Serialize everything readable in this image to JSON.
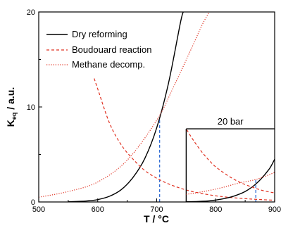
{
  "chart_data": {
    "type": "line",
    "title": "",
    "xlabel": "T / °C",
    "ylabel_main": "K",
    "ylabel_sub": "eq",
    "ylabel_rest": " / a.u.",
    "xlim": [
      500,
      900
    ],
    "ylim": [
      0,
      20
    ],
    "x_ticks": [
      500,
      600,
      700,
      800,
      900
    ],
    "y_ticks": [
      0,
      10,
      20
    ],
    "grid": false,
    "legend_position": "top-right",
    "colors": {
      "dry": "#000000",
      "boudouard": "#e03020",
      "methane": "#e03020",
      "marker": "#2060d0"
    },
    "series": [
      {
        "name": "Dry reforming",
        "style": "solid",
        "x": [
          550,
          580,
          600,
          620,
          640,
          660,
          680,
          700,
          720,
          740,
          745
        ],
        "values": [
          0.02,
          0.1,
          0.25,
          0.6,
          1.3,
          2.6,
          4.6,
          7.8,
          12.5,
          18.8,
          20
        ]
      },
      {
        "name": "Boudouard reaction",
        "style": "dashed",
        "x": [
          594,
          600,
          620,
          640,
          660,
          680,
          700,
          720,
          740,
          760,
          780,
          800,
          820,
          850,
          870,
          900
        ],
        "values": [
          13.0,
          11.9,
          8.3,
          6.0,
          4.5,
          3.3,
          2.5,
          1.9,
          1.45,
          1.1,
          0.85,
          0.65,
          0.5,
          0.35,
          0.27,
          0.18
        ]
      },
      {
        "name": "Methane decomp.",
        "style": "dotted",
        "x": [
          500,
          550,
          600,
          650,
          700,
          730,
          760,
          780,
          800,
          820
        ],
        "values": [
          0.5,
          1.1,
          2.1,
          4.4,
          8.6,
          12.3,
          16.3,
          19.0,
          21.0,
          22.8
        ]
      }
    ],
    "markers": [
      {
        "x": 705,
        "y": 8.6
      }
    ],
    "inset": {
      "label": "20 bar",
      "xlim": [
        750,
        900
      ],
      "y_top": 7.7,
      "series": [
        {
          "name": "Dry reforming",
          "style": "solid",
          "x": [
            750,
            770,
            790,
            810,
            830,
            850,
            870,
            890,
            900
          ],
          "values": [
            0.02,
            0.05,
            0.12,
            0.3,
            0.6,
            1.1,
            2.0,
            3.4,
            4.5
          ]
        },
        {
          "name": "Boudouard reaction",
          "style": "dashed",
          "x": [
            751,
            760,
            770,
            780,
            790,
            800,
            820,
            840,
            860,
            880,
            900
          ],
          "values": [
            7.6,
            6.7,
            5.8,
            5.0,
            4.3,
            3.7,
            2.8,
            2.1,
            1.6,
            1.2,
            0.95
          ]
        },
        {
          "name": "Methane decomp.",
          "style": "dotted",
          "x": [
            750,
            780,
            810,
            840,
            870,
            900
          ],
          "values": [
            0.8,
            1.1,
            1.5,
            2.0,
            2.4,
            3.1
          ]
        }
      ],
      "marker": {
        "x": 868,
        "y": 2.3
      }
    }
  }
}
